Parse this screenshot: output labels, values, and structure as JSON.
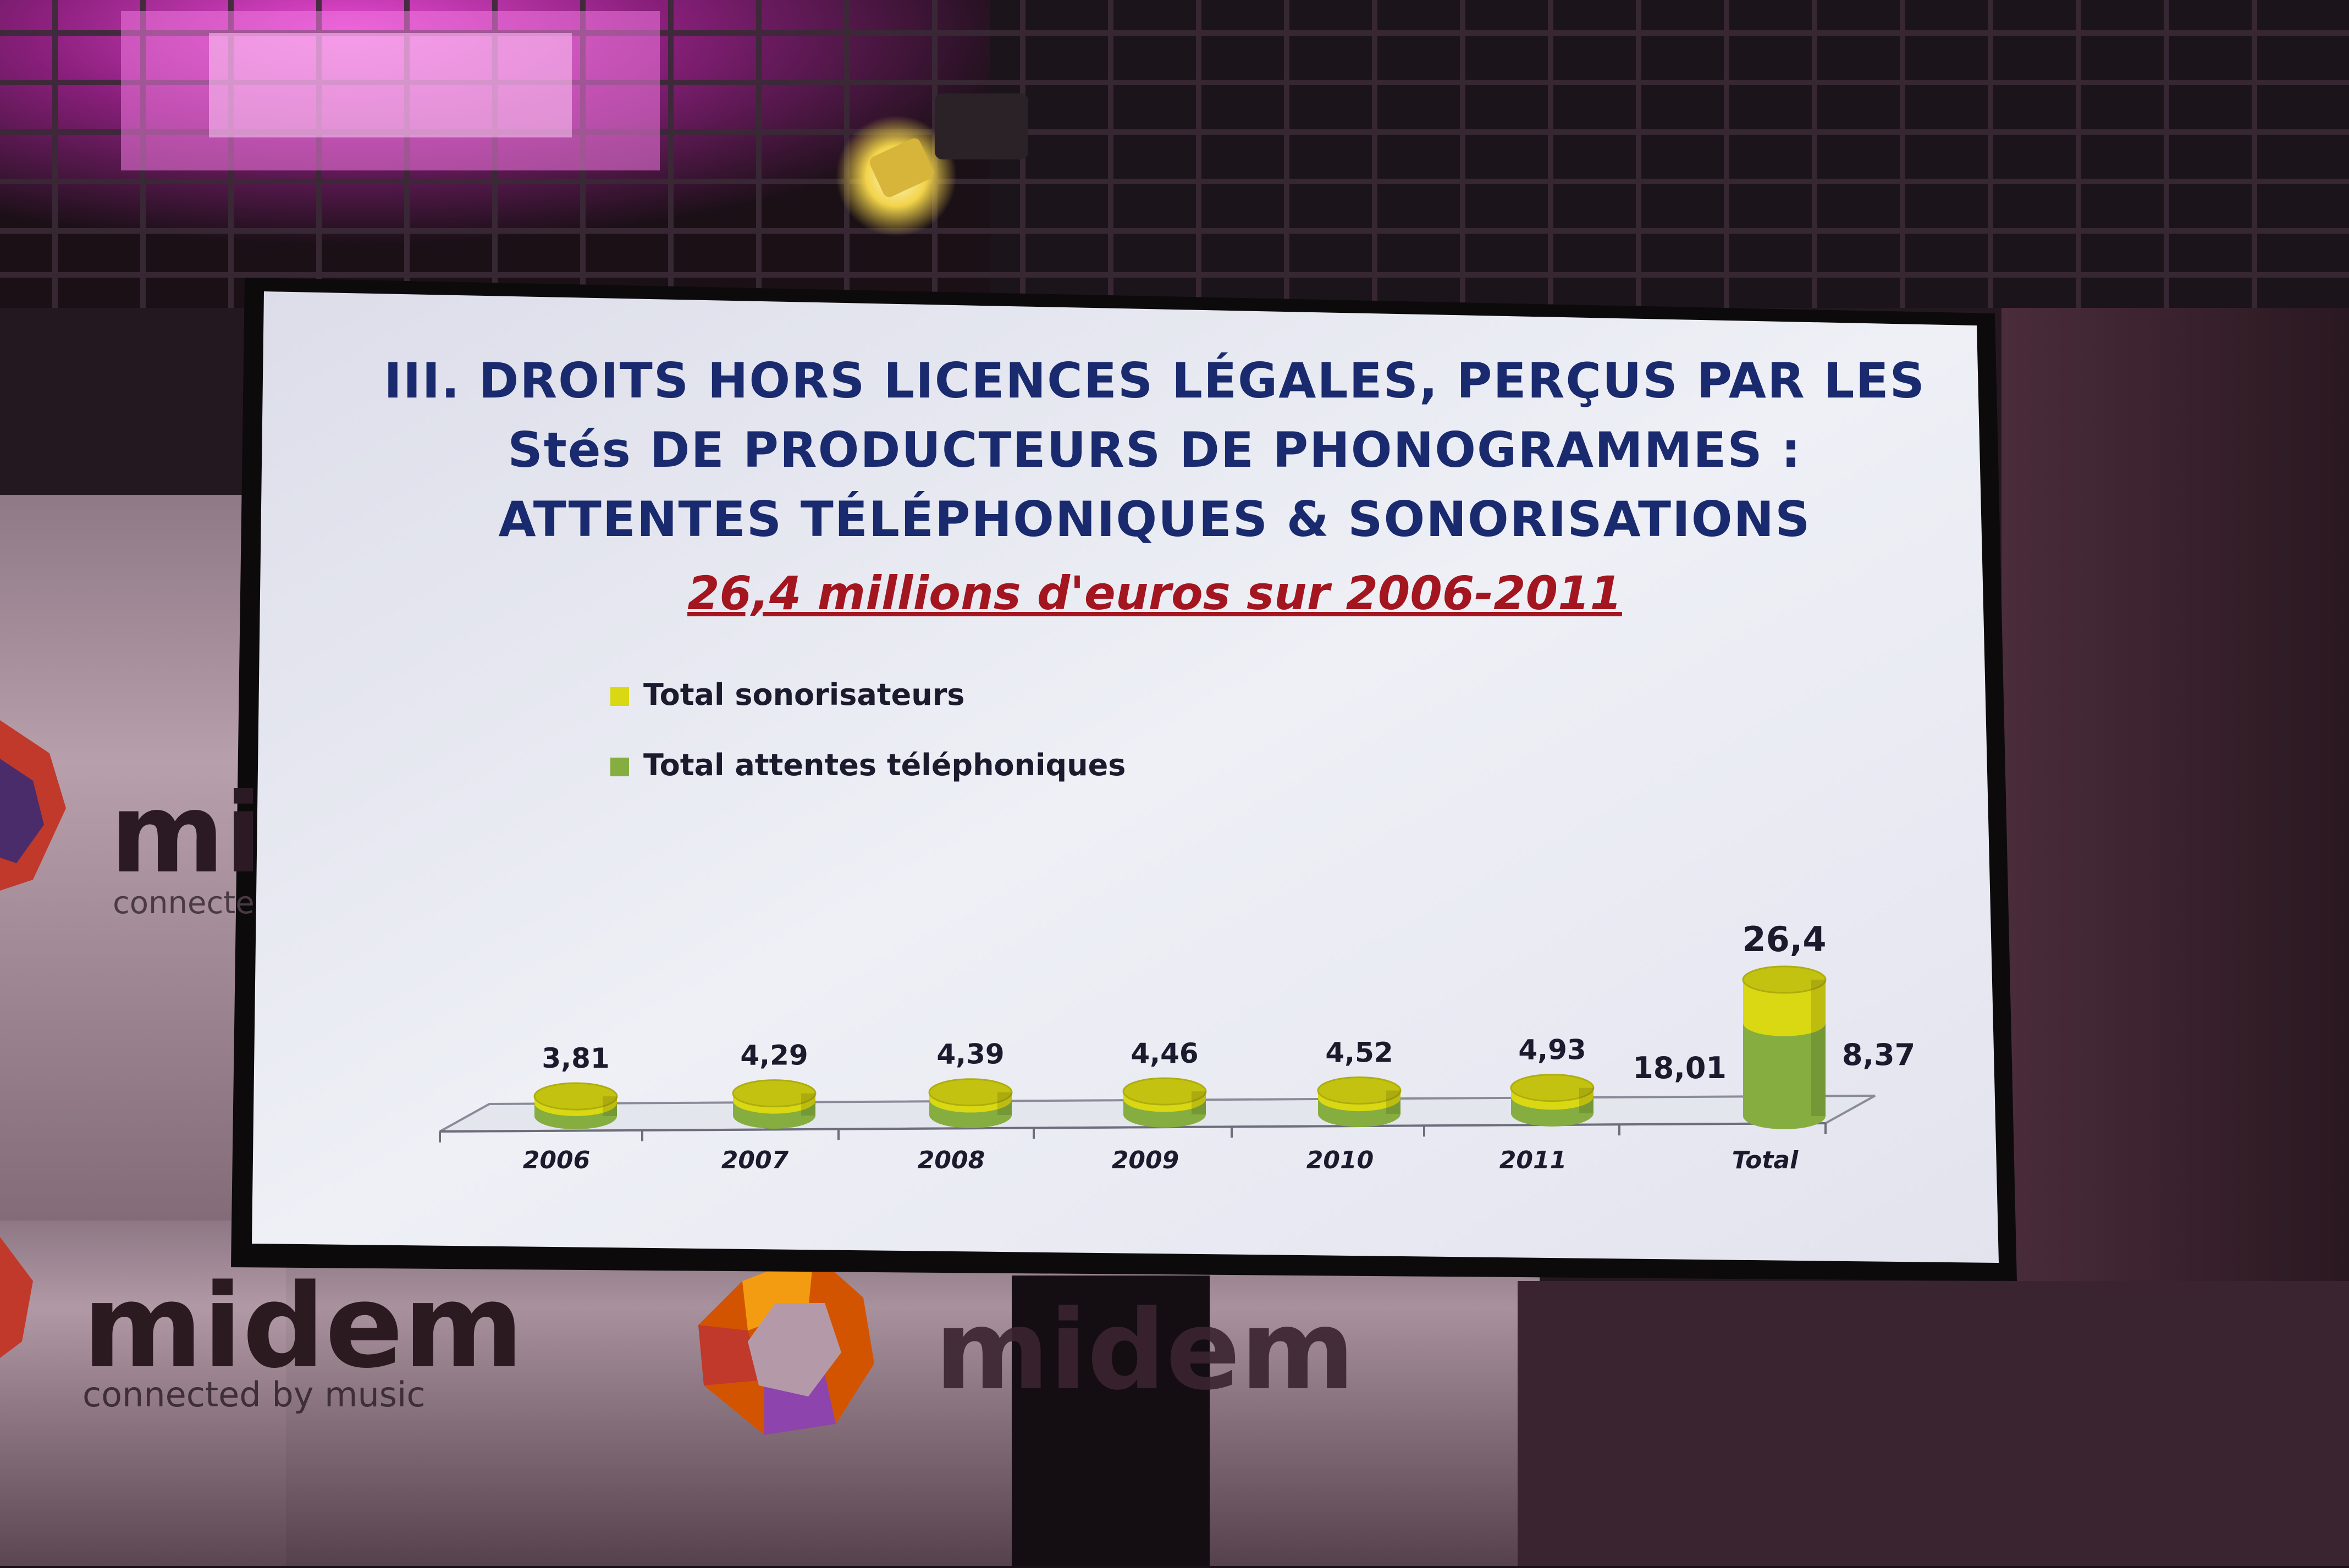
{
  "slide": {
    "title_lines": [
      "III. DROITS HORS LICENCES LÉGALES, PERÇUS PAR LES",
      "Stés DE PRODUCTEURS DE PHONOGRAMMES :",
      "ATTENTES TÉLÉPHONIQUES & SONORISATIONS"
    ],
    "subtitle": "26,4 millions d'euros sur 2006-2011"
  },
  "chart_data": {
    "type": "bar",
    "stacked": true,
    "style": "3d-cylinder",
    "categories": [
      "2006",
      "2007",
      "2008",
      "2009",
      "2010",
      "2011",
      "Total"
    ],
    "series": [
      {
        "name": "Total attentes téléphoniques",
        "color": "#86ad3f"
      },
      {
        "name": "Total sonorisateurs",
        "color": "#d9d812"
      }
    ],
    "totals": [
      3.81,
      4.29,
      4.39,
      4.46,
      4.52,
      4.93,
      26.4
    ],
    "total_labels": [
      "3,81",
      "4,29",
      "4,39",
      "4,46",
      "4,52",
      "4,93",
      "26,4"
    ],
    "green_fraction": [
      0.67,
      0.68,
      0.69,
      0.68,
      0.68,
      0.66,
      0.682
    ],
    "breakdown_labels": {
      "Total": {
        "Total attentes téléphoniques": "18,01",
        "Total sonorisateurs": "8,37"
      }
    },
    "breakdown_values": {
      "Total": {
        "Total attentes téléphoniques": 18.01,
        "Total sonorisateurs": 8.37
      }
    },
    "legend_position": "top-left",
    "grid": false
  },
  "background": {
    "brand": "midem",
    "tagline": "connected by music",
    "tagline_partial": "connecte",
    "brand_partial": "mi"
  },
  "colors": {
    "title": "#1a2a6e",
    "subtitle": "#a3151f",
    "screen": "#e8e8f2",
    "ceiling_light": "#c22fae"
  }
}
